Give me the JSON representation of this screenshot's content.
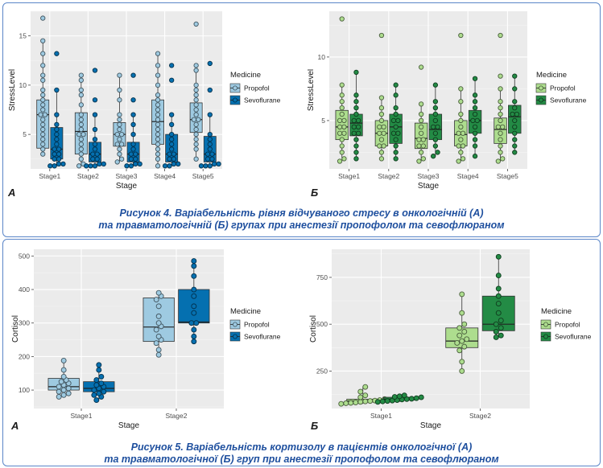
{
  "figure4": {
    "caption_line1": "Рисунок 4. Варіабельність рівня відчуваного стресу в онкологічній (А)",
    "caption_line2": "та травматологічній (Б) групах при анестезії пропофолом та севофлюраном"
  },
  "figure5": {
    "caption_line1": "Рисунок 5. Варіабельність кортизолу в пацієнтів онкологічної (А)",
    "caption_line2": "та травматологічної (Б) груп при анестезії пропофолом та севофлюраном"
  },
  "colors": {
    "panel_bg": "#ebebeb",
    "grid": "#ffffff",
    "frame": "#5b86c8",
    "caption": "#1e4f9e",
    "onc_propofol": "#9ecae1",
    "onc_sevoflurane": "#0570b0",
    "trauma_propofol": "#addd8e",
    "trauma_sevoflurane": "#238b45"
  },
  "chart_data": [
    {
      "id": "fig4A",
      "type": "box",
      "panel_label": "А",
      "xlabel": "Stage",
      "ylabel": "StressLevel",
      "categories": [
        "Stage1",
        "Stage2",
        "Stage3",
        "Stage4",
        "Stage5"
      ],
      "ylim": [
        1.5,
        17.5
      ],
      "yticks": [
        5,
        10,
        15
      ],
      "grid": true,
      "legend_title": "Medicine",
      "legend_position": "right",
      "series": [
        {
          "name": "Propofol",
          "color": "#9ecae1",
          "boxes": [
            {
              "min": 2.8,
              "q1": 3.6,
              "median": 7.0,
              "q3": 8.5,
              "max": 14.5
            },
            {
              "min": 1.8,
              "q1": 3.0,
              "median": 5.3,
              "q3": 7.2,
              "max": 11.0
            },
            {
              "min": 2.2,
              "q1": 3.8,
              "median": 5.0,
              "q3": 6.2,
              "max": 11.0
            },
            {
              "min": 1.8,
              "q1": 4.0,
              "median": 6.3,
              "q3": 8.5,
              "max": 13.2
            },
            {
              "min": 2.4,
              "q1": 5.2,
              "median": 6.5,
              "q3": 8.2,
              "max": 12.0
            }
          ],
          "points": [
            [
              16.8,
              14.5,
              13.2,
              12.0,
              11.0,
              10.5,
              9.5,
              9.0,
              8.5,
              8.0,
              7.5,
              7.0,
              7.0,
              6.5,
              6.0,
              5.5,
              5.0,
              4.5,
              4.0,
              3.5,
              3.0
            ],
            [
              11.0,
              10.5,
              9.5,
              9.0,
              8.0,
              7.0,
              6.5,
              6.0,
              5.5,
              5.0,
              5.0,
              4.5,
              4.0,
              3.5,
              3.0,
              2.5,
              2.0,
              1.8
            ],
            [
              11.0,
              9.5,
              8.5,
              7.0,
              6.5,
              6.0,
              5.5,
              5.0,
              5.0,
              4.5,
              4.0,
              4.0,
              3.5,
              3.0,
              2.5,
              2.2
            ],
            [
              13.2,
              12.0,
              11.0,
              10.0,
              9.0,
              8.5,
              8.0,
              7.5,
              7.0,
              6.5,
              6.0,
              5.5,
              5.0,
              4.5,
              4.0,
              3.5,
              3.0,
              2.5,
              1.8
            ],
            [
              16.2,
              12.0,
              11.5,
              10.0,
              9.5,
              9.0,
              8.5,
              8.0,
              7.5,
              7.0,
              6.5,
              6.5,
              6.0,
              5.5,
              5.0,
              4.5,
              4.0,
              3.5,
              2.5
            ]
          ]
        },
        {
          "name": "Sevoflurane",
          "color": "#0570b0",
          "boxes": [
            {
              "min": 1.8,
              "q1": 2.5,
              "median": 3.5,
              "q3": 5.7,
              "max": 9.5
            },
            {
              "min": 1.8,
              "q1": 2.2,
              "median": 3.0,
              "q3": 4.2,
              "max": 7.0
            },
            {
              "min": 1.8,
              "q1": 2.2,
              "median": 3.0,
              "q3": 4.2,
              "max": 7.0
            },
            {
              "min": 1.8,
              "q1": 2.2,
              "median": 3.0,
              "q3": 5.0,
              "max": 7.2
            },
            {
              "min": 1.8,
              "q1": 2.2,
              "median": 3.0,
              "q3": 4.8,
              "max": 7.0
            }
          ],
          "points": [
            [
              13.2,
              9.5,
              7.0,
              6.0,
              5.5,
              5.0,
              4.5,
              4.0,
              3.5,
              3.5,
              3.0,
              3.0,
              2.5,
              2.5,
              2.0,
              2.0,
              1.8,
              1.8
            ],
            [
              11.5,
              8.5,
              7.0,
              5.5,
              4.5,
              4.0,
              3.5,
              3.0,
              3.0,
              2.5,
              2.5,
              2.0,
              2.0,
              1.8,
              1.8,
              1.8
            ],
            [
              11.0,
              8.5,
              7.0,
              6.0,
              5.0,
              4.0,
              3.5,
              3.0,
              3.0,
              2.5,
              2.5,
              2.0,
              2.0,
              1.8,
              1.8
            ],
            [
              12.0,
              10.5,
              7.0,
              6.0,
              5.0,
              4.5,
              4.0,
              3.5,
              3.0,
              3.0,
              2.5,
              2.5,
              2.0,
              2.0,
              1.8,
              1.8
            ],
            [
              12.2,
              9.5,
              7.0,
              5.0,
              4.5,
              4.0,
              3.5,
              3.0,
              3.0,
              2.5,
              2.5,
              2.0,
              2.0,
              1.8,
              1.8,
              1.8
            ]
          ]
        }
      ]
    },
    {
      "id": "fig4B",
      "type": "box",
      "panel_label": "Б",
      "xlabel": "Stage",
      "ylabel": "StressLevel",
      "categories": [
        "Stage1",
        "Stage2",
        "Stage3",
        "Stage4",
        "Stage5"
      ],
      "ylim": [
        1.2,
        13.6
      ],
      "yticks": [
        5,
        10
      ],
      "grid": true,
      "legend_title": "Medicine",
      "legend_position": "right",
      "series": [
        {
          "name": "Propofol",
          "color": "#addd8e",
          "boxes": [
            {
              "min": 2.0,
              "q1": 3.5,
              "median": 4.5,
              "q3": 5.8,
              "max": 7.8
            },
            {
              "min": 2.0,
              "q1": 3.0,
              "median": 4.0,
              "q3": 5.0,
              "max": 6.8
            },
            {
              "min": 1.8,
              "q1": 2.8,
              "median": 3.6,
              "q3": 4.8,
              "max": 6.3
            },
            {
              "min": 1.8,
              "q1": 3.0,
              "median": 3.9,
              "q3": 5.0,
              "max": 7.5
            },
            {
              "min": 1.8,
              "q1": 3.2,
              "median": 4.3,
              "q3": 5.2,
              "max": 7.5
            }
          ],
          "points": [
            [
              13.0,
              7.8,
              7.0,
              6.5,
              6.0,
              5.5,
              5.0,
              5.0,
              4.5,
              4.5,
              4.0,
              4.0,
              3.5,
              3.0,
              2.5,
              2.0,
              1.8
            ],
            [
              11.7,
              6.8,
              6.0,
              5.5,
              5.0,
              4.5,
              4.5,
              4.0,
              4.0,
              3.5,
              3.0,
              3.0,
              2.5,
              2.0
            ],
            [
              9.2,
              6.3,
              5.5,
              5.0,
              4.5,
              4.0,
              3.5,
              3.5,
              3.0,
              3.0,
              2.5,
              2.0,
              1.8
            ],
            [
              11.7,
              7.5,
              6.5,
              5.5,
              5.0,
              4.5,
              4.0,
              4.0,
              3.5,
              3.0,
              3.0,
              2.5,
              2.0,
              1.8
            ],
            [
              11.7,
              8.5,
              7.5,
              6.5,
              6.0,
              5.5,
              5.0,
              4.5,
              4.5,
              4.0,
              3.5,
              3.0,
              2.5,
              2.0,
              1.8
            ]
          ]
        },
        {
          "name": "Sevoflurane",
          "color": "#238b45",
          "boxes": [
            {
              "min": 2.0,
              "q1": 3.8,
              "median": 4.8,
              "q3": 5.5,
              "max": 8.8
            },
            {
              "min": 2.0,
              "q1": 3.2,
              "median": 4.5,
              "q3": 5.5,
              "max": 7.8
            },
            {
              "min": 2.2,
              "q1": 3.5,
              "median": 4.3,
              "q3": 5.5,
              "max": 7.8
            },
            {
              "min": 2.2,
              "q1": 4.0,
              "median": 5.0,
              "q3": 5.8,
              "max": 8.3
            },
            {
              "min": 2.5,
              "q1": 4.0,
              "median": 5.3,
              "q3": 6.2,
              "max": 8.5
            }
          ],
          "points": [
            [
              8.8,
              7.0,
              6.5,
              6.0,
              5.5,
              5.0,
              5.0,
              4.5,
              4.5,
              4.0,
              4.0,
              3.5,
              3.0,
              2.5,
              2.0
            ],
            [
              7.8,
              7.0,
              6.0,
              5.5,
              5.0,
              5.0,
              4.5,
              4.0,
              4.0,
              3.5,
              3.0,
              2.5,
              2.0
            ],
            [
              7.8,
              6.5,
              6.0,
              5.5,
              5.0,
              4.5,
              4.5,
              4.0,
              3.5,
              3.0,
              2.5,
              2.2
            ],
            [
              8.3,
              7.0,
              6.5,
              6.0,
              5.5,
              5.0,
              5.0,
              4.5,
              4.0,
              3.5,
              3.0,
              2.2
            ],
            [
              8.5,
              7.5,
              6.5,
              6.0,
              5.5,
              5.5,
              5.0,
              4.5,
              4.0,
              3.5,
              3.0,
              2.5
            ]
          ]
        }
      ]
    },
    {
      "id": "fig5A",
      "type": "box",
      "panel_label": "А",
      "xlabel": "Stage",
      "ylabel": "Cortisol",
      "categories": [
        "Stage1",
        "Stage2"
      ],
      "ylim": [
        45,
        520
      ],
      "yticks": [
        100,
        200,
        300,
        400,
        500
      ],
      "grid": true,
      "legend_title": "Medicine",
      "legend_position": "right",
      "series": [
        {
          "name": "Propofol",
          "color": "#9ecae1",
          "boxes": [
            {
              "min": 80,
              "q1": 100,
              "median": 110,
              "q3": 135,
              "max": 188
            },
            {
              "min": 205,
              "q1": 245,
              "median": 288,
              "q3": 375,
              "max": 390
            }
          ],
          "points": [
            [
              188,
              160,
              140,
              130,
              125,
              120,
              115,
              110,
              105,
              100,
              95,
              90,
              85,
              80
            ],
            [
              390,
              380,
              370,
              350,
              320,
              300,
              290,
              280,
              260,
              250,
              240,
              220,
              205
            ]
          ]
        },
        {
          "name": "Sevoflurane",
          "color": "#0570b0",
          "boxes": [
            {
              "min": 70,
              "q1": 95,
              "median": 105,
              "q3": 125,
              "max": 175
            },
            {
              "min": 245,
              "q1": 300,
              "median": 303,
              "q3": 400,
              "max": 485
            }
          ],
          "points": [
            [
              175,
              160,
              140,
              130,
              120,
              115,
              110,
              105,
              100,
              95,
              90,
              85,
              80,
              70
            ],
            [
              485,
              470,
              440,
              400,
              380,
              350,
              330,
              300,
              300,
              280,
              260,
              245
            ]
          ]
        }
      ]
    },
    {
      "id": "fig5B",
      "type": "box",
      "panel_label": "Б",
      "xlabel": "Stage",
      "ylabel": "Cortisol",
      "categories": [
        "Stage1",
        "Stage2"
      ],
      "ylim": [
        50,
        900
      ],
      "yticks": [
        250,
        500,
        750
      ],
      "grid": true,
      "legend_title": "Medicine",
      "legend_position": "right",
      "series": [
        {
          "name": "Propofol",
          "color": "#addd8e",
          "boxes": [
            {
              "min": 75,
              "q1": 85,
              "median": 90,
              "q3": 100,
              "max": 165
            },
            {
              "min": 250,
              "q1": 375,
              "median": 410,
              "q3": 480,
              "max": 660
            }
          ],
          "points": [
            [
              165,
              140,
              120,
              110,
              100,
              95,
              92,
              90,
              88,
              85,
              82,
              80,
              78,
              75
            ],
            [
              660,
              560,
              500,
              480,
              460,
              440,
              420,
              410,
              400,
              380,
              360,
              300,
              250
            ]
          ]
        },
        {
          "name": "Sevoflurane",
          "color": "#238b45",
          "boxes": [
            {
              "min": 85,
              "q1": 95,
              "median": 100,
              "q3": 110,
              "max": 120
            },
            {
              "min": 430,
              "q1": 465,
              "median": 500,
              "q3": 650,
              "max": 860
            }
          ],
          "points": [
            [
              120,
              115,
              112,
              110,
              105,
              102,
              100,
              98,
              95,
              92,
              90,
              88,
              85
            ],
            [
              860,
              760,
              690,
              650,
              610,
              560,
              520,
              500,
              480,
              460,
              440,
              430
            ]
          ]
        }
      ]
    }
  ]
}
